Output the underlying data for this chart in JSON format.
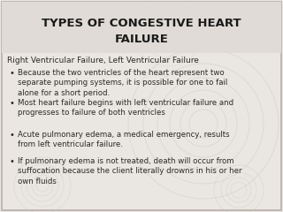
{
  "title_line1": "TYPES OF CONGESTIVE HEART",
  "title_line2": "FAILURE",
  "subtitle": "Right Ventricular Failure, Left Ventricular Failure",
  "bullets": [
    "Because the two ventricles of the heart represent two\nseparate pumping systems, it is possible for one to fail\nalone for a short period.",
    "Most heart failure begins with left ventricular failure and\nprogresses to failure of both ventricles",
    "Acute pulmonary edema, a medical emergency, results\nfrom left ventricular failure.",
    "If pulmonary edema is not treated, death will occur from\nsuffocation because the client literally drowns in his or her\nown fluids"
  ],
  "bg_color": "#eae6e2",
  "title_bg_color": "#e0dbd6",
  "title_color": "#1a1a1a",
  "text_color": "#2d2a27",
  "title_fontsize": 9.5,
  "subtitle_fontsize": 6.5,
  "bullet_fontsize": 6.2,
  "border_color": "#b8b0a8",
  "circle_color": "#ccc8c2",
  "bullet_char": "•"
}
